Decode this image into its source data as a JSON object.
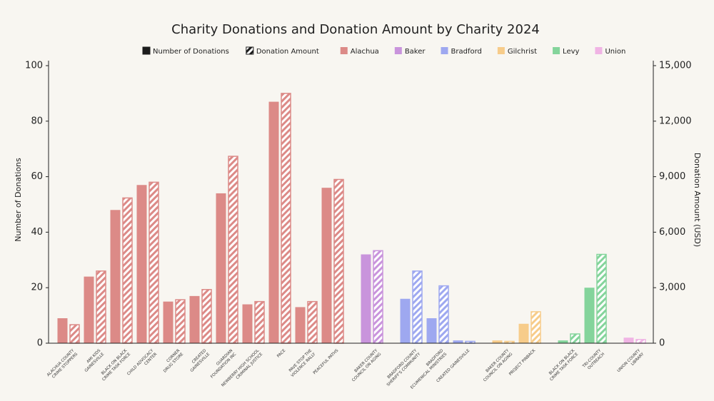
{
  "chart_data": {
    "type": "grouped-bar-dual-axis",
    "title": "Charity Donations and Donation Amount by Charity 2024",
    "y_label": "Number of Donations",
    "y2_label": "Donation Amount (USD)",
    "ylim": [
      0,
      100
    ],
    "yticks": [
      0,
      20,
      40,
      60,
      80,
      100
    ],
    "y2lim": [
      0,
      15000
    ],
    "y2ticks": [
      0,
      {
        "value": 3000,
        "label": "3,000"
      },
      {
        "value": 6000,
        "label": "6,000"
      },
      {
        "value": 9000,
        "label": "9,000"
      },
      {
        "value": 12000,
        "label": "12,000"
      },
      {
        "value": 15000,
        "label": "15,000"
      }
    ],
    "series": [
      {
        "name": "Number of Donations",
        "style": "solid",
        "color": "#1c1c1c"
      },
      {
        "name": "Donation Amount",
        "style": "hatched",
        "color": "#1c1c1c",
        "axis": "y2"
      }
    ],
    "groups": [
      {
        "name": "Alachua",
        "color": "#dc8a87",
        "categories": [
          [
            "ALACHUA COUNTY",
            "CRIME STOPPERS"
          ],
          [
            "AMI KIDS",
            "GAINESVILLE"
          ],
          [
            "BLACK ON BLACK",
            "CRIME TASK FORCE"
          ],
          [
            "CHILD ADVOCACY",
            "CENTER"
          ],
          [
            "CORNER",
            "DRUG STORE"
          ],
          [
            "CREATED",
            "GAINESVILLE"
          ],
          [
            "GUARDIAN",
            "FOUNDATION INC"
          ],
          [
            "NEWBERRY HIGH SCHOOL",
            "CRIMINAL JUSTICE"
          ],
          [
            "PACE"
          ],
          [
            "PAVE STOP THE",
            "VIOLENCE RALLY"
          ],
          [
            "PEACEFUL PATHS"
          ]
        ],
        "donations": [
          9,
          24,
          48,
          57,
          15,
          17,
          54,
          14,
          87,
          13,
          56
        ],
        "amounts": [
          1000,
          3900,
          7850,
          8700,
          2350,
          2900,
          10100,
          2250,
          13500,
          2250,
          8850
        ]
      },
      {
        "name": "Baker",
        "color": "#c994dc",
        "categories": [
          [
            "BAKER COUNTY",
            "COUNCIL ON AGING"
          ]
        ],
        "donations": [
          32
        ],
        "amounts": [
          5000
        ]
      },
      {
        "name": "Bradford",
        "color": "#9ea8f0",
        "categories": [
          [
            "BRADFORD COUNTY",
            "SHERIFF'S COMMUNITY"
          ],
          [
            "BRADFORD",
            "ECUMENICAL MINISTRIES"
          ],
          [
            "CREATED GAINESVILLE"
          ]
        ],
        "donations": [
          16,
          9,
          1
        ],
        "amounts": [
          3900,
          3100,
          100
        ]
      },
      {
        "name": "Gilchrist",
        "color": "#f7cc8a",
        "categories": [
          [
            "BAKER COUNTY",
            "COUNCIL ON AGING"
          ],
          [
            "PROJECT PINBACK"
          ]
        ],
        "donations": [
          1,
          7
        ],
        "amounts": [
          100,
          1700
        ]
      },
      {
        "name": "Levy",
        "color": "#84d49b",
        "categories": [
          [
            "BLACK ON BLACK",
            "CRIME TASK FORCE"
          ],
          [
            "TRI-COUNTY",
            "OUTREACH"
          ]
        ],
        "donations": [
          1,
          20
        ],
        "amounts": [
          500,
          4800
        ]
      },
      {
        "name": "Union",
        "color": "#f0b4e4",
        "categories": [
          [
            "UNION COUNTY",
            "LIBRARY"
          ]
        ],
        "donations": [
          2
        ],
        "amounts": [
          200
        ]
      }
    ]
  }
}
